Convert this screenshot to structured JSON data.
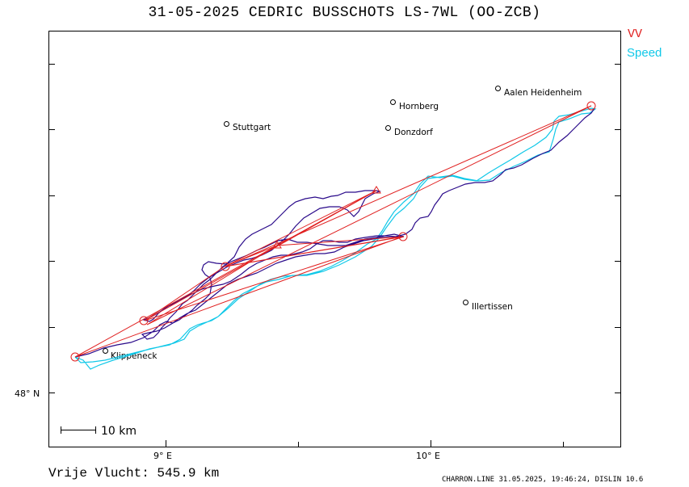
{
  "header": {
    "title": "31-05-2025   CEDRIC BUSSCHOTS   LS-7WL (OO-ZCB)"
  },
  "legend": {
    "vv_label": "VV",
    "speed_label": "Speed"
  },
  "axes": {
    "x_ticks": [
      {
        "label": "9° E",
        "lon": 9.0
      },
      {
        "label": "10° E",
        "lon": 10.0
      }
    ],
    "y_ticks": [
      {
        "label": "48° N",
        "lat": 48.0
      }
    ]
  },
  "scale_bar": {
    "label": "10 km",
    "km": 10
  },
  "places": [
    {
      "name": "Stuttgart"
    },
    {
      "name": "Hornberg"
    },
    {
      "name": "Aalen Heidenheim"
    },
    {
      "name": "Donzdorf"
    },
    {
      "name": "Illertissen"
    },
    {
      "name": "Klippeneck"
    }
  ],
  "colors": {
    "task": "#e02020",
    "track_vv": "#2a0a8a",
    "track_speed": "#10c8e8",
    "frame": "#000000"
  },
  "distance": {
    "text": "Vrije Vlucht:  545.9 km"
  },
  "footer": {
    "text": "CHARRON.LINE 31.05.2025, 19:46:24, DISLIN 10.6"
  }
}
